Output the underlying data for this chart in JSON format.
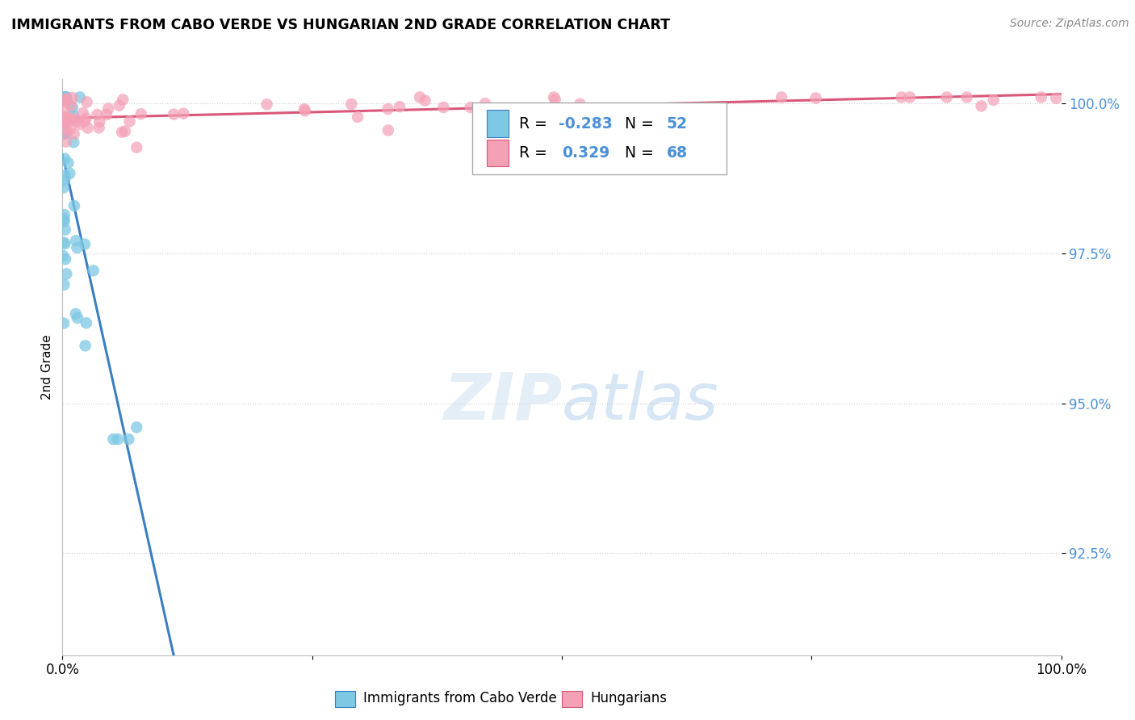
{
  "title": "IMMIGRANTS FROM CABO VERDE VS HUNGARIAN 2ND GRADE CORRELATION CHART",
  "source": "Source: ZipAtlas.com",
  "ylabel": "2nd Grade",
  "ytick_labels": [
    "100.0%",
    "97.5%",
    "95.0%",
    "92.5%"
  ],
  "ytick_values": [
    1.0,
    0.975,
    0.95,
    0.925
  ],
  "xmin": 0.0,
  "xmax": 1.0,
  "ymin": 0.908,
  "ymax": 1.004,
  "legend_label1": "Immigrants from Cabo Verde",
  "legend_label2": "Hungarians",
  "r1": "-0.283",
  "n1": "52",
  "r2": "0.329",
  "n2": "68",
  "color_blue": "#7ec8e3",
  "color_pink": "#f4a0b5",
  "color_blue_line": "#3a7fc1",
  "color_pink_line": "#d9577a",
  "color_blue_text": "#4a90d9",
  "color_pink_text": "#d9577a"
}
